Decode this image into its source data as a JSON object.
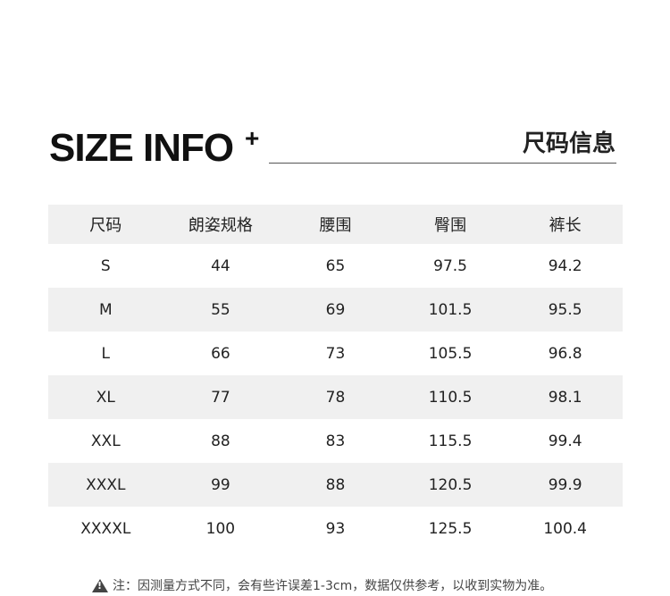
{
  "header": {
    "title": "SIZE INFO",
    "plus": "+",
    "cn_title": "尺码信息"
  },
  "table": {
    "columns": [
      "尺码",
      "朗姿规格",
      "腰围",
      "臀围",
      "裤长"
    ],
    "rows": [
      [
        "S",
        "44",
        "65",
        "97.5",
        "94.2"
      ],
      [
        "M",
        "55",
        "69",
        "101.5",
        "95.5"
      ],
      [
        "L",
        "66",
        "73",
        "105.5",
        "96.8"
      ],
      [
        "XL",
        "77",
        "78",
        "110.5",
        "98.1"
      ],
      [
        "XXL",
        "88",
        "83",
        "115.5",
        "99.4"
      ],
      [
        "XXXL",
        "99",
        "88",
        "120.5",
        "99.9"
      ],
      [
        "XXXXL",
        "100",
        "93",
        "125.5",
        "100.4"
      ]
    ]
  },
  "note": {
    "icon": "warning-icon",
    "text": "注：因测量方式不同，会有些许误差1-3cm，数据仅供参考，以收到实物为准。"
  },
  "colors": {
    "stripe": "#f0f0f0",
    "text": "#222222"
  }
}
